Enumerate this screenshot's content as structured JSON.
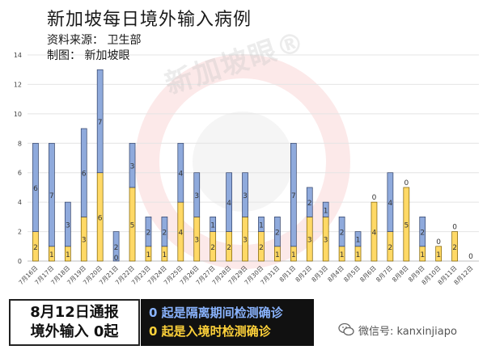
{
  "header": {
    "title": "新加坡每日境外输入病例",
    "source": "资料来源：  卫生部",
    "maker": "制图：  新加坡眼"
  },
  "watermark": "新加坡眼®",
  "footer": {
    "left_line1": "8月12日通报",
    "left_line2": "境外输入 0起",
    "right_line1": "0 起是隔离期间检测确诊",
    "right_line2": "0 起是入境时检测确诊",
    "wechat_label": "微信号: kanxinjiapo"
  },
  "colors": {
    "quarantine": "#8faadc",
    "arrival": "#ffd966",
    "quarantine_stroke": "#2f3f66",
    "arrival_stroke": "#7a5d00"
  },
  "chart_data": {
    "type": "bar",
    "stacked": true,
    "categories": [
      "7月16日",
      "7月17日",
      "7月18日",
      "7月19日",
      "7月20日",
      "7月21日",
      "7月22日",
      "7月23日",
      "7月24日",
      "7月25日",
      "7月26日",
      "7月27日",
      "7月28日",
      "7月29日",
      "7月30日",
      "7月31日",
      "8月1日",
      "8月2日",
      "8月3日",
      "8月4日",
      "8月5日",
      "8月6日",
      "8月7日",
      "8月8日",
      "8月9日",
      "8月10日",
      "8月11日",
      "8月12日"
    ],
    "series": [
      {
        "key": "arrival",
        "values": [
          2,
          1,
          1,
          3,
          6,
          0,
          5,
          1,
          1,
          4,
          3,
          2,
          2,
          3,
          2,
          1,
          1,
          3,
          3,
          1,
          1,
          4,
          2,
          5,
          1,
          1,
          2,
          0
        ]
      },
      {
        "key": "quarantine",
        "values": [
          6,
          7,
          3,
          6,
          7,
          2,
          3,
          2,
          2,
          4,
          3,
          1,
          4,
          3,
          1,
          2,
          7,
          2,
          1,
          2,
          1,
          0,
          4,
          0,
          2,
          0,
          0,
          0
        ]
      }
    ],
    "labels": {
      "arrival": [
        "2",
        "1",
        "1",
        "3",
        "6",
        "",
        "5",
        "1",
        "1",
        "4",
        "3",
        "2",
        "2",
        "3",
        "2",
        "1",
        "1",
        "3",
        "3",
        "1",
        "1",
        "4",
        "2",
        "5",
        "1",
        "1",
        "2",
        "0"
      ],
      "quarantine": [
        "6",
        "7",
        "3",
        "6",
        "7",
        "2",
        "3",
        "2",
        "2",
        "4",
        "3",
        "1",
        "4",
        "3",
        "1",
        "2",
        "7",
        "2",
        "1",
        "2",
        "1",
        "0",
        "4",
        "0",
        "2",
        "0",
        "0",
        ""
      ]
    },
    "extra_label": {
      "category_index": 5,
      "text": "0"
    },
    "ylim": [
      0,
      14
    ],
    "yticks": [
      0,
      2,
      4,
      6,
      8,
      10,
      12,
      14
    ],
    "grid": true,
    "title": "新加坡每日境外输入病例",
    "xlabel": "",
    "ylabel": ""
  }
}
